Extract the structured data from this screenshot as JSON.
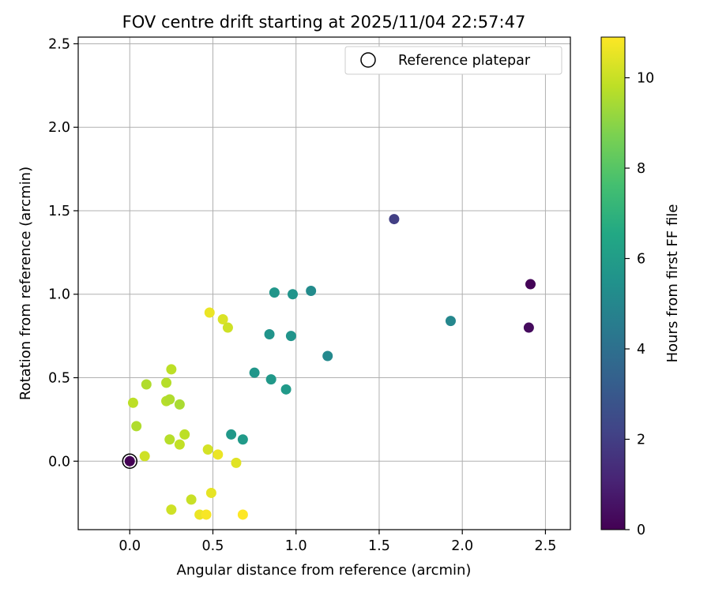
{
  "chart_data": {
    "type": "scatter",
    "title": "FOV centre drift starting at 2025/11/04 22:57:47",
    "xlabel": "Angular distance from reference (arcmin)",
    "ylabel": "Rotation from reference (arcmin)",
    "xlim": [
      -0.31,
      2.65
    ],
    "ylim": [
      -0.41,
      2.54
    ],
    "xticks": [
      0.0,
      0.5,
      1.0,
      1.5,
      2.0,
      2.5
    ],
    "xtick_labels": [
      "0.0",
      "0.5",
      "1.0",
      "1.5",
      "2.0",
      "2.5"
    ],
    "yticks": [
      0.0,
      0.5,
      1.0,
      1.5,
      2.0,
      2.5
    ],
    "ytick_labels": [
      "0.0",
      "0.5",
      "1.0",
      "1.5",
      "2.0",
      "2.5"
    ],
    "grid": true,
    "legend": {
      "label": "Reference platepar",
      "position": "top-right"
    },
    "reference_point": {
      "x": 0.0,
      "y": 0.0
    },
    "colorbar": {
      "label": "Hours from first FF file",
      "range": [
        0,
        10.9
      ],
      "ticks": [
        0,
        2,
        4,
        6,
        8,
        10
      ],
      "tick_labels": [
        "0",
        "2",
        "4",
        "6",
        "8",
        "10"
      ],
      "colormap": "viridis"
    },
    "points": [
      {
        "x": 0.0,
        "y": 0.0,
        "c": 0.0
      },
      {
        "x": 2.41,
        "y": 1.06,
        "c": 0.1
      },
      {
        "x": 2.4,
        "y": 0.8,
        "c": 0.3
      },
      {
        "x": 1.59,
        "y": 1.45,
        "c": 2.0
      },
      {
        "x": 1.93,
        "y": 0.84,
        "c": 5.0
      },
      {
        "x": 1.19,
        "y": 0.63,
        "c": 5.1
      },
      {
        "x": 1.09,
        "y": 1.02,
        "c": 5.2
      },
      {
        "x": 0.98,
        "y": 1.0,
        "c": 5.6
      },
      {
        "x": 0.87,
        "y": 1.01,
        "c": 5.7
      },
      {
        "x": 0.84,
        "y": 0.76,
        "c": 5.6
      },
      {
        "x": 0.97,
        "y": 0.75,
        "c": 5.6
      },
      {
        "x": 0.75,
        "y": 0.53,
        "c": 5.7
      },
      {
        "x": 0.85,
        "y": 0.49,
        "c": 5.8
      },
      {
        "x": 0.94,
        "y": 0.43,
        "c": 5.9
      },
      {
        "x": 0.61,
        "y": 0.16,
        "c": 5.8
      },
      {
        "x": 0.68,
        "y": 0.13,
        "c": 5.9
      },
      {
        "x": 0.48,
        "y": 0.89,
        "c": 10.6
      },
      {
        "x": 0.56,
        "y": 0.85,
        "c": 10.3
      },
      {
        "x": 0.59,
        "y": 0.8,
        "c": 10.1
      },
      {
        "x": 0.25,
        "y": 0.55,
        "c": 9.8
      },
      {
        "x": 0.1,
        "y": 0.46,
        "c": 9.6
      },
      {
        "x": 0.22,
        "y": 0.47,
        "c": 9.7
      },
      {
        "x": 0.02,
        "y": 0.35,
        "c": 9.8
      },
      {
        "x": 0.22,
        "y": 0.36,
        "c": 9.7
      },
      {
        "x": 0.24,
        "y": 0.37,
        "c": 9.6
      },
      {
        "x": 0.3,
        "y": 0.34,
        "c": 9.5
      },
      {
        "x": 0.04,
        "y": 0.21,
        "c": 9.6
      },
      {
        "x": 0.33,
        "y": 0.16,
        "c": 9.8
      },
      {
        "x": 0.24,
        "y": 0.13,
        "c": 9.7
      },
      {
        "x": 0.3,
        "y": 0.1,
        "c": 9.9
      },
      {
        "x": 0.09,
        "y": 0.03,
        "c": 10.1
      },
      {
        "x": 0.47,
        "y": 0.07,
        "c": 10.2
      },
      {
        "x": 0.53,
        "y": 0.04,
        "c": 10.6
      },
      {
        "x": 0.64,
        "y": -0.01,
        "c": 10.4
      },
      {
        "x": 0.37,
        "y": -0.23,
        "c": 10.0
      },
      {
        "x": 0.49,
        "y": -0.19,
        "c": 10.5
      },
      {
        "x": 0.25,
        "y": -0.29,
        "c": 10.1
      },
      {
        "x": 0.42,
        "y": -0.32,
        "c": 10.6
      },
      {
        "x": 0.46,
        "y": -0.32,
        "c": 10.8
      },
      {
        "x": 0.68,
        "y": -0.32,
        "c": 10.9
      }
    ]
  }
}
